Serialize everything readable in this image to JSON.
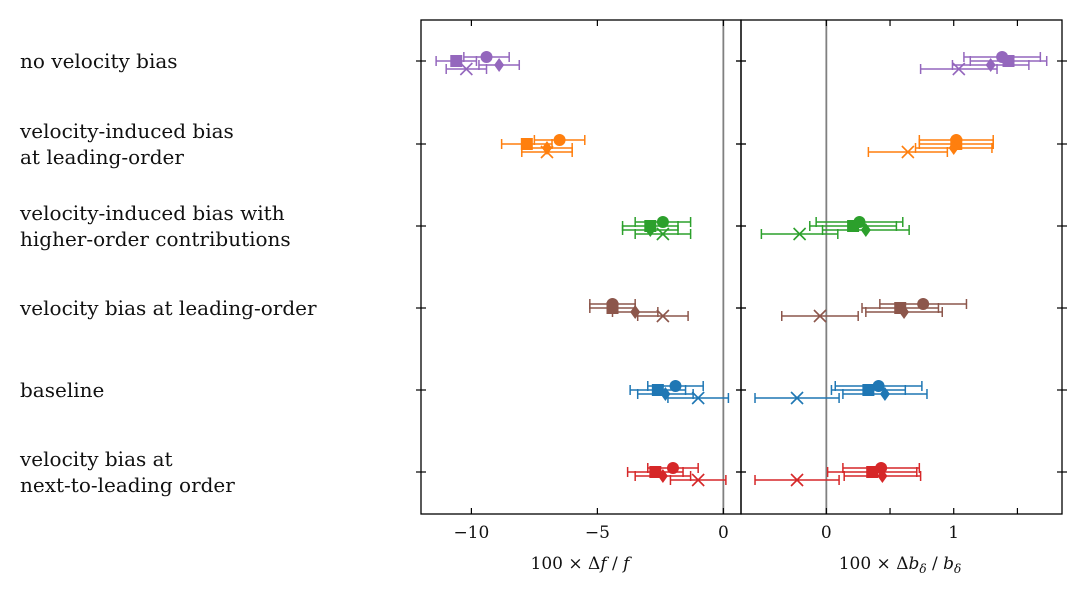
{
  "chart_data": {
    "type": "scatter",
    "title": "",
    "rows": [
      {
        "key": "novel",
        "lines": [
          "no velocity bias"
        ],
        "color": "#9467bd"
      },
      {
        "key": "vlo",
        "lines": [
          "velocity-induced bias",
          "at leading-order"
        ],
        "color": "#ff7f0e"
      },
      {
        "key": "vho",
        "lines": [
          "velocity-induced bias with",
          "higher-order contributions"
        ],
        "color": "#2ca02c"
      },
      {
        "key": "vblo",
        "lines": [
          "velocity bias at leading-order"
        ],
        "color": "#8c564b"
      },
      {
        "key": "base",
        "lines": [
          "baseline"
        ],
        "color": "#1f77b4"
      },
      {
        "key": "vbnlo",
        "lines": [
          "velocity bias at",
          "next-to-leading order"
        ],
        "color": "#d62728"
      }
    ],
    "markers": [
      "circle",
      "square",
      "diamond",
      "x"
    ],
    "panels": [
      {
        "name": "f",
        "xlabel": "100 × Δf / f",
        "xlim": [
          -12,
          0.7
        ],
        "ticks": [
          -10,
          -5,
          0
        ],
        "tick_labels": [
          "−10",
          "−5",
          "0"
        ],
        "reference_line": 0,
        "points": [
          [
            [
              -9.4,
              0.9,
              0.9
            ],
            [
              -10.6,
              0.8,
              0.8
            ],
            [
              -8.9,
              0.8,
              0.8
            ],
            [
              -10.2,
              0.8,
              0.8
            ]
          ],
          [
            [
              -6.5,
              1.0,
              1.0
            ],
            [
              -7.8,
              1.0,
              1.0
            ],
            [
              -7.0,
              1.0,
              1.0
            ],
            [
              -7.0,
              1.0,
              1.0
            ]
          ],
          [
            [
              -2.4,
              1.1,
              1.1
            ],
            [
              -2.9,
              1.1,
              1.1
            ],
            [
              -2.9,
              1.1,
              1.1
            ],
            [
              -2.4,
              1.1,
              1.1
            ]
          ],
          [
            [
              -4.4,
              0.9,
              0.9
            ],
            [
              -4.4,
              0.9,
              0.9
            ],
            [
              -3.5,
              0.9,
              0.9
            ],
            [
              -2.4,
              1.0,
              1.0
            ]
          ],
          [
            [
              -1.9,
              1.1,
              1.1
            ],
            [
              -2.6,
              1.1,
              1.1
            ],
            [
              -2.3,
              1.1,
              1.1
            ],
            [
              -1.0,
              1.2,
              1.2
            ]
          ],
          [
            [
              -2.0,
              1.0,
              1.0
            ],
            [
              -2.7,
              1.1,
              1.1
            ],
            [
              -2.4,
              1.1,
              1.1
            ],
            [
              -1.0,
              1.1,
              1.1
            ]
          ]
        ]
      },
      {
        "name": "b",
        "xlabel": "100 × Δb_δ / b_δ",
        "xlim": [
          -0.67,
          1.85
        ],
        "ticks": [
          0,
          0.5,
          1.0,
          1.5
        ],
        "tick_labels": [
          "0",
          "",
          "1",
          ""
        ],
        "reference_line": 0,
        "points": [
          [
            [
              1.38,
              0.3,
              0.3
            ],
            [
              1.43,
              0.3,
              0.3
            ],
            [
              1.29,
              0.3,
              0.3
            ],
            [
              1.04,
              0.3,
              0.3
            ]
          ],
          [
            [
              1.02,
              0.29,
              0.29
            ],
            [
              1.02,
              0.29,
              0.29
            ],
            [
              1.0,
              0.3,
              0.3
            ],
            [
              0.64,
              0.31,
              0.31
            ]
          ],
          [
            [
              0.26,
              0.34,
              0.34
            ],
            [
              0.21,
              0.34,
              0.34
            ],
            [
              0.31,
              0.34,
              0.34
            ],
            [
              -0.21,
              0.3,
              0.3
            ]
          ],
          [
            [
              0.76,
              0.34,
              0.34
            ],
            [
              0.58,
              0.3,
              0.3
            ],
            [
              0.61,
              0.3,
              0.3
            ],
            [
              -0.05,
              0.3,
              0.3
            ]
          ],
          [
            [
              0.41,
              0.34,
              0.34
            ],
            [
              0.33,
              0.29,
              0.29
            ],
            [
              0.46,
              0.33,
              0.33
            ],
            [
              -0.23,
              0.33,
              0.33
            ]
          ],
          [
            [
              0.43,
              0.3,
              0.3
            ],
            [
              0.36,
              0.35,
              0.35
            ],
            [
              0.44,
              0.3,
              0.3
            ],
            [
              -0.23,
              0.33,
              0.33
            ]
          ]
        ]
      }
    ]
  }
}
